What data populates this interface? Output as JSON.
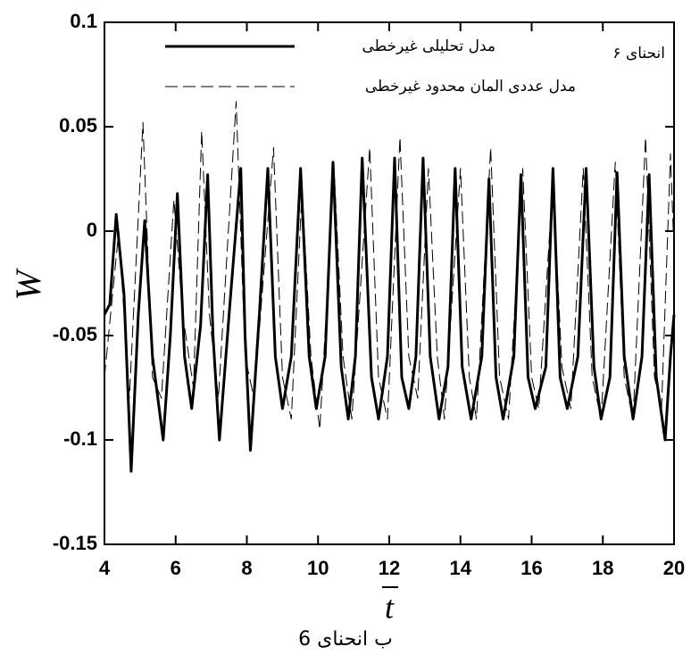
{
  "chart_data": {
    "type": "line",
    "annotation": "انحنای ۶",
    "caption": "ب انحنای 6",
    "x_label": "t",
    "y_label": "W",
    "xlim": [
      4,
      20
    ],
    "xticks": [
      4,
      6,
      8,
      10,
      12,
      14,
      16,
      18,
      20
    ],
    "ylim": [
      -0.15,
      0.1
    ],
    "yticks": [
      -0.15,
      -0.1,
      -0.05,
      0,
      0.05,
      0.1
    ],
    "series": [
      {
        "name": "مدل تحلیلی غیرخطی",
        "color": "#000000",
        "style": "solid",
        "x": [
          4,
          4.15,
          4.33,
          4.55,
          4.75,
          4.95,
          5.13,
          5.35,
          5.65,
          5.85,
          6.05,
          6.25,
          6.45,
          6.7,
          6.9,
          7.05,
          7.23,
          7.5,
          7.83,
          7.95,
          8.1,
          8.35,
          8.59,
          8.8,
          9.0,
          9.25,
          9.51,
          9.75,
          9.95,
          10.2,
          10.42,
          10.65,
          10.85,
          11.05,
          11.24,
          11.5,
          11.7,
          11.95,
          12.15,
          12.35,
          12.55,
          12.75,
          12.95,
          13.15,
          13.4,
          13.65,
          13.85,
          14.05,
          14.3,
          14.6,
          14.8,
          15.0,
          15.2,
          15.5,
          15.7,
          15.9,
          16.1,
          16.4,
          16.6,
          16.8,
          17.0,
          17.3,
          17.53,
          17.75,
          17.95,
          18.2,
          18.4,
          18.6,
          18.85,
          19.1,
          19.3,
          19.5,
          19.75,
          19.9,
          20
        ],
        "values": [
          -0.04,
          -0.035,
          0.008,
          -0.03,
          -0.115,
          -0.04,
          0.005,
          -0.06,
          -0.1,
          -0.05,
          0.018,
          -0.06,
          -0.085,
          -0.045,
          0.027,
          -0.05,
          -0.1,
          -0.04,
          0.03,
          -0.05,
          -0.105,
          -0.04,
          0.03,
          -0.06,
          -0.085,
          -0.06,
          0.03,
          -0.06,
          -0.085,
          -0.06,
          0.033,
          -0.065,
          -0.09,
          -0.06,
          0.035,
          -0.07,
          -0.09,
          -0.06,
          0.035,
          -0.07,
          -0.085,
          -0.06,
          0.035,
          -0.06,
          -0.09,
          -0.065,
          0.03,
          -0.065,
          -0.09,
          -0.06,
          0.025,
          -0.07,
          -0.09,
          -0.06,
          0.027,
          -0.07,
          -0.085,
          -0.065,
          0.03,
          -0.07,
          -0.085,
          -0.06,
          0.03,
          -0.065,
          -0.09,
          -0.07,
          0.028,
          -0.06,
          -0.09,
          -0.06,
          0.027,
          -0.07,
          -0.1,
          -0.06,
          -0.04
        ]
      },
      {
        "name": "مدل عددی المان محدود غیرخطی",
        "color": "#000000",
        "style": "dashed",
        "x": [
          4,
          4.4,
          4.7,
          5.08,
          5.35,
          5.6,
          5.95,
          6.2,
          6.5,
          6.73,
          6.95,
          7.2,
          7.7,
          7.95,
          8.2,
          8.75,
          9.0,
          9.25,
          9.55,
          9.8,
          10.05,
          10.45,
          10.7,
          10.95,
          11.45,
          11.7,
          11.95,
          12.3,
          12.55,
          12.8,
          13.1,
          13.35,
          13.55,
          14.0,
          14.25,
          14.45,
          14.85,
          15.1,
          15.35,
          15.75,
          16.0,
          16.2,
          16.6,
          16.85,
          17.1,
          17.45,
          17.7,
          17.95,
          18.35,
          18.6,
          18.85,
          19.2,
          19.45,
          19.65,
          19.9,
          20
        ],
        "values": [
          -0.07,
          0.0,
          -0.08,
          0.052,
          -0.07,
          -0.08,
          0.015,
          -0.04,
          -0.075,
          0.048,
          -0.04,
          -0.08,
          0.062,
          -0.06,
          -0.08,
          0.04,
          -0.07,
          -0.09,
          0.02,
          -0.06,
          -0.095,
          0.03,
          -0.06,
          -0.09,
          0.04,
          -0.07,
          -0.09,
          0.045,
          -0.06,
          -0.08,
          0.03,
          -0.06,
          -0.09,
          0.03,
          -0.07,
          -0.09,
          0.04,
          -0.07,
          -0.09,
          0.03,
          -0.07,
          -0.085,
          0.025,
          -0.065,
          -0.085,
          0.03,
          -0.07,
          -0.09,
          0.033,
          -0.07,
          -0.09,
          0.045,
          -0.07,
          -0.085,
          0.037,
          -0.01
        ]
      }
    ]
  }
}
